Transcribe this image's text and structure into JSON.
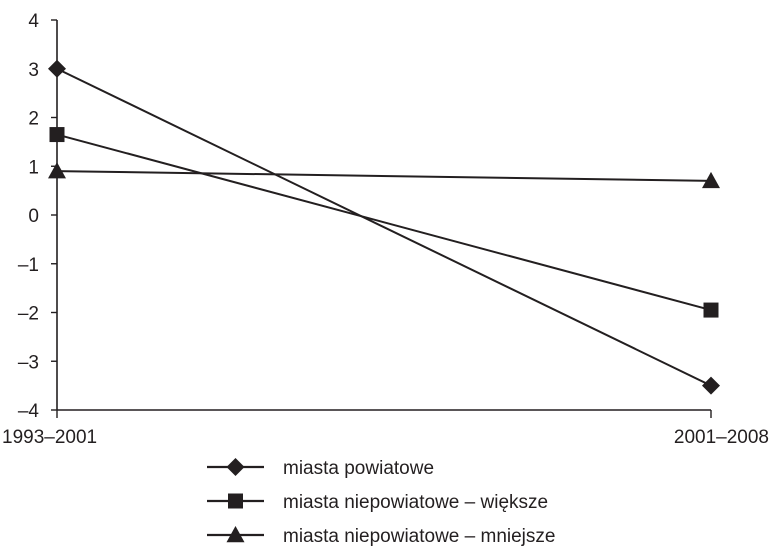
{
  "chart_data": {
    "type": "line",
    "title": "",
    "xlabel": "",
    "ylabel": "",
    "categories": [
      "1993–2001",
      "2001–2008"
    ],
    "ylim": [
      -4,
      4
    ],
    "yticks": [
      4,
      3,
      2,
      1,
      0,
      -1,
      -2,
      -3,
      -4
    ],
    "ytick_labels": [
      "4",
      "3",
      "2",
      "1",
      "0",
      "–1",
      "–2",
      "–3",
      "–4"
    ],
    "grid": false,
    "legend_position": "bottom",
    "series": [
      {
        "name": "miasta powiatowe",
        "values": [
          3.0,
          -3.5
        ],
        "marker": "diamond",
        "color": "#231f20"
      },
      {
        "name": "miasta niepowiatowe – większe",
        "values": [
          1.65,
          -1.95
        ],
        "marker": "square",
        "color": "#231f20"
      },
      {
        "name": "miasta niepowiatowe – mniejsze",
        "values": [
          0.9,
          0.7
        ],
        "marker": "triangle",
        "color": "#231f20"
      }
    ]
  }
}
